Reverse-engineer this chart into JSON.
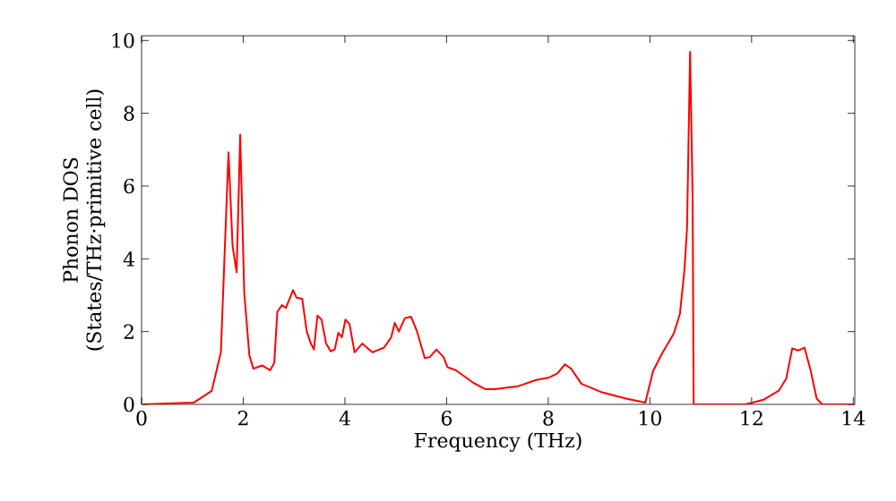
{
  "chart_data": {
    "type": "line",
    "xlabel": "Frequency (THz)",
    "ylabel": "Phonon DOS\n(States/THz·primitive cell)",
    "xlim": [
      0,
      14.03
    ],
    "ylim": [
      0,
      10.13
    ],
    "xticks": [
      0,
      2,
      4,
      6,
      8,
      10,
      12,
      14
    ],
    "yticks": [
      0,
      2,
      4,
      6,
      8,
      10
    ],
    "marker": "none",
    "line_style": "solid",
    "series": [
      {
        "color": "#ff0000",
        "x": [
          0,
          1.03,
          1.38,
          1.56,
          1.71,
          1.79,
          1.87,
          1.94,
          2.02,
          2.12,
          2.2,
          2.37,
          2.53,
          2.61,
          2.67,
          2.76,
          2.84,
          2.98,
          3.05,
          3.16,
          3.25,
          3.33,
          3.39,
          3.46,
          3.54,
          3.63,
          3.72,
          3.8,
          3.87,
          3.94,
          4.01,
          4.09,
          4.19,
          4.34,
          4.54,
          4.77,
          4.91,
          4.98,
          5.06,
          5.18,
          5.3,
          5.42,
          5.57,
          5.67,
          5.8,
          5.94,
          6.02,
          6.18,
          6.53,
          6.76,
          6.94,
          7.41,
          7.76,
          8.0,
          8.18,
          8.33,
          8.45,
          8.65,
          9.06,
          9.53,
          9.91,
          10.06,
          10.24,
          10.47,
          10.59,
          10.68,
          10.73,
          10.79,
          10.84,
          10.86,
          11.88,
          12.24,
          12.53,
          12.68,
          12.8,
          12.91,
          13.04,
          13.16,
          13.28,
          13.39,
          14.02
        ],
        "values": [
          0,
          0.05,
          0.37,
          1.43,
          6.93,
          4.36,
          3.63,
          7.41,
          3.06,
          1.35,
          0.98,
          1.07,
          0.94,
          1.14,
          2.54,
          2.73,
          2.65,
          3.14,
          2.93,
          2.9,
          2.0,
          1.67,
          1.51,
          2.44,
          2.33,
          1.67,
          1.46,
          1.51,
          1.97,
          1.84,
          2.33,
          2.21,
          1.43,
          1.67,
          1.43,
          1.56,
          1.84,
          2.24,
          2.0,
          2.37,
          2.41,
          2.0,
          1.27,
          1.3,
          1.51,
          1.3,
          1.02,
          0.94,
          0.59,
          0.42,
          0.42,
          0.5,
          0.67,
          0.73,
          0.85,
          1.1,
          0.98,
          0.57,
          0.33,
          0.16,
          0.05,
          0.91,
          1.4,
          1.95,
          2.49,
          3.71,
          4.85,
          9.69,
          5.66,
          0,
          0,
          0.13,
          0.37,
          0.7,
          1.54,
          1.48,
          1.56,
          0.94,
          0.16,
          0,
          0
        ]
      }
    ]
  }
}
